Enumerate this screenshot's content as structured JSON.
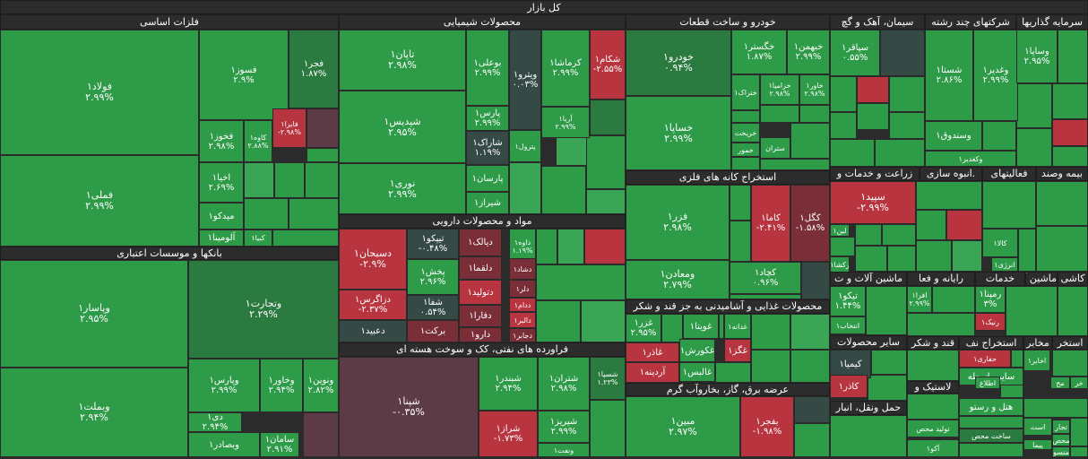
{
  "title": "کل بازار",
  "colors": {
    "green": "#2e9b48",
    "lgreen": "#3aa655",
    "dgreen": "#2b7a3f",
    "red": "#b8343f",
    "dred": "#7a2f38",
    "gray": "#354a45",
    "mauve": "#5d3b46"
  },
  "sectors": [
    {
      "label": "فلزات اساسی"
    },
    {
      "label": "محصولات شیمیایی"
    },
    {
      "label": "خودرو و ساخت قطعات"
    },
    {
      "label": "سیمان، آهک و گچ"
    },
    {
      "label": "شرکتهای چند رشته"
    },
    {
      "label": "سرمایه گذاریها"
    },
    {
      "label": "بانکها و موسسات اعتباری"
    },
    {
      "label": "مواد و محصولات دارویی"
    },
    {
      "label": "استخراج کانه های فلزی"
    },
    {
      "label": "زراعت و خدمات و"
    },
    {
      "label": ".انبوه سازی"
    },
    {
      "label": "فعالیتهای"
    },
    {
      "label": "بیمه وصند"
    },
    {
      "label": "فراورده های نفتی، کک و سوخت هسته ای"
    },
    {
      "label": "محصولات غذایی و آشامیدنی به جز قند و شکر"
    },
    {
      "label": "ماشین آلات و ت"
    },
    {
      "label": "رایانه و فعا"
    },
    {
      "label": "خدمات"
    },
    {
      "label": "ماشین آ"
    },
    {
      "label": "کاشی"
    },
    {
      "label": "عرضه برق، گاز، بخاروآب گرم"
    },
    {
      "label": "سایر محصولات"
    },
    {
      "label": "قند و شکر"
    },
    {
      "label": "استخراج نف"
    },
    {
      "label": "مخابر"
    },
    {
      "label": "استخر"
    },
    {
      "label": "حمل ونقل، انبار"
    },
    {
      "label": "لاستیک و"
    }
  ],
  "tiles": [
    {
      "name": "فولاد۱",
      "pct": "۲.۹۹%"
    },
    {
      "name": "فملی۱",
      "pct": "۲.۹۹%"
    },
    {
      "name": "فسوز۱",
      "pct": "۲.۹%"
    },
    {
      "name": "فجر۱",
      "pct": "۱.۸۷%"
    },
    {
      "name": "فخوز۱",
      "pct": "۲.۹۸%"
    },
    {
      "name": "کاوه۱",
      "pct": "۲.۸۸%"
    },
    {
      "name": "فایرا۱",
      "pct": "-۲.۹۸%"
    },
    {
      "name": "",
      "pct": ""
    },
    {
      "name": "اخیا۱",
      "pct": "۲.۶۹%"
    },
    {
      "name": "میدکو۱",
      "pct": ""
    },
    {
      "name": "آلومینا۱",
      "pct": ""
    },
    {
      "name": "کبیا۱",
      "pct": ""
    },
    {
      "name": "تاپان۱",
      "pct": "۲.۹۸%"
    },
    {
      "name": "شپدیس۱",
      "pct": "۲.۹۵%"
    },
    {
      "name": "نوری۱",
      "pct": "۲.۹۹%"
    },
    {
      "name": "بوعلی۱",
      "pct": "۲.۹۹%"
    },
    {
      "name": "ویترو۱",
      "pct": "۰.۰۳%"
    },
    {
      "name": "کرماشا۱",
      "pct": "۲.۹۹%"
    },
    {
      "name": "شکام۱",
      "pct": "-۲.۵۵%"
    },
    {
      "name": "پارس۱",
      "pct": "۲.۹۹%"
    },
    {
      "name": "آریا۱",
      "pct": "۲.۹۹%"
    },
    {
      "name": "شاراک۱",
      "pct": "۱.۱۹%"
    },
    {
      "name": "پترول۱",
      "pct": ""
    },
    {
      "name": "پارسان۱",
      "pct": ""
    },
    {
      "name": "شیراز۱",
      "pct": ""
    },
    {
      "name": "خودرو۱",
      "pct": "۰.۹۴%"
    },
    {
      "name": "خساپا۱",
      "pct": "۲.۹۹%"
    },
    {
      "name": "خگستر۱",
      "pct": "۱.۸۷%"
    },
    {
      "name": "خبهمن۱",
      "pct": "۲.۹۹%"
    },
    {
      "name": "خزامیا۱",
      "pct": "۲.۹۸%"
    },
    {
      "name": "خاور۱",
      "pct": "۲.۹۸%"
    },
    {
      "name": "ختراک۱",
      "pct": ""
    },
    {
      "name": "خریخت",
      "pct": ""
    },
    {
      "name": "خمور",
      "pct": ""
    },
    {
      "name": "ستران",
      "pct": ""
    },
    {
      "name": "سپاقر۱",
      "pct": "۰.۵۵%"
    },
    {
      "name": "شستا۱",
      "pct": "۲.۸۶%"
    },
    {
      "name": "وغدیر۱",
      "pct": "۲.۹۹%"
    },
    {
      "name": "وسندوق۱",
      "pct": ""
    },
    {
      "name": "وکغدیر۱",
      "pct": ""
    },
    {
      "name": "وساپا۱",
      "pct": "۲.۹۵%"
    },
    {
      "name": "وپاسار۱",
      "pct": "۲.۹۵%"
    },
    {
      "name": "وتجارت۱",
      "pct": "۲.۲۹%"
    },
    {
      "name": "وبملت۱",
      "pct": "۲.۹۴%"
    },
    {
      "name": "وپارس۱",
      "pct": "۲.۹۹%"
    },
    {
      "name": "وخاور۱",
      "pct": "۲.۹۴%"
    },
    {
      "name": "ونوین۱",
      "pct": "۲.۸۲%"
    },
    {
      "name": "دی۱",
      "pct": "۲.۹۴%"
    },
    {
      "name": "وبصادر۱",
      "pct": ""
    },
    {
      "name": "سامان۱",
      "pct": "۲.۹۱%"
    },
    {
      "name": "",
      "pct": ""
    },
    {
      "name": "دسبحان۱",
      "pct": "-۲.۹%"
    },
    {
      "name": "تیپکو۱",
      "pct": "-۰.۴۸%"
    },
    {
      "name": "دیالک۱",
      "pct": ""
    },
    {
      "name": "داوه۱",
      "pct": "۱.۱۹%"
    },
    {
      "name": "پخش۱",
      "pct": "۲.۹۶%"
    },
    {
      "name": "دلقما۱",
      "pct": ""
    },
    {
      "name": "دشاد۱",
      "pct": ""
    },
    {
      "name": "دلر۱",
      "pct": ""
    },
    {
      "name": "دزاگرس۱",
      "pct": "-۲.۳۷%"
    },
    {
      "name": "شفا۱",
      "pct": "۰.۵۴%"
    },
    {
      "name": "دتولید۱",
      "pct": ""
    },
    {
      "name": "ددام۱",
      "pct": ""
    },
    {
      "name": "دعبید۱",
      "pct": ""
    },
    {
      "name": "برکت۱",
      "pct": ""
    },
    {
      "name": "دفارا۱",
      "pct": ""
    },
    {
      "name": "دالبر۱",
      "pct": ""
    },
    {
      "name": "دارو۱",
      "pct": ""
    },
    {
      "name": "دجابر۱",
      "pct": ""
    },
    {
      "name": "فزر۱",
      "pct": "۲.۹۸%"
    },
    {
      "name": "کاما۱",
      "pct": "-۲.۴۱%"
    },
    {
      "name": "کگل۱",
      "pct": "-۱.۵۸%"
    },
    {
      "name": "ومعادن۱",
      "pct": "۲.۷۹%"
    },
    {
      "name": "کچاد۱",
      "pct": "۰.۹۶%"
    },
    {
      "name": "سپید۱",
      "pct": "-۲.۹۹%"
    },
    {
      "name": "لبن۱",
      "pct": ""
    },
    {
      "name": "زکشا۱",
      "pct": ""
    },
    {
      "name": "کالا۱",
      "pct": ""
    },
    {
      "name": "انرژی۱",
      "pct": ""
    },
    {
      "name": "شپنا۱",
      "pct": "-۰.۳۵%"
    },
    {
      "name": "شبندر۱",
      "pct": "۲.۹۴%"
    },
    {
      "name": "شتران۱",
      "pct": "۲.۹۸%"
    },
    {
      "name": "شسپا۱",
      "pct": "۱.۲۳%"
    },
    {
      "name": "شراز۱",
      "pct": "-۱.۷۳%"
    },
    {
      "name": "شیریز۱",
      "pct": "۲.۹۹%"
    },
    {
      "name": "ونفت۱",
      "pct": ""
    },
    {
      "name": "غزر۱",
      "pct": "۲.۹۵%"
    },
    {
      "name": "غویتا۱",
      "pct": ""
    },
    {
      "name": "غدانه۱",
      "pct": ""
    },
    {
      "name": "غاذر۱",
      "pct": ""
    },
    {
      "name": "غکورش۱",
      "pct": ""
    },
    {
      "name": "غگز۱",
      "pct": ""
    },
    {
      "name": "آردینه۱",
      "pct": ""
    },
    {
      "name": "غالبس۱",
      "pct": ""
    },
    {
      "name": "تیکو۱",
      "pct": "۱.۴۴%"
    },
    {
      "name": "انتخاب۱",
      "pct": ""
    },
    {
      "name": "افرا۱",
      "pct": "۲.۹۹%"
    },
    {
      "name": "رمپنا۱",
      "pct": "۳%"
    },
    {
      "name": "رنیک۱",
      "pct": ""
    },
    {
      "name": "مبین۱",
      "pct": "۲.۹۷%"
    },
    {
      "name": "بفجر۱",
      "pct": "-۱.۹۸%"
    },
    {
      "name": "کیمیا۱",
      "pct": ""
    },
    {
      "name": "کاذر۱",
      "pct": ""
    },
    {
      "name": "حفاری۱",
      "pct": ""
    },
    {
      "name": "اخابر۱",
      "pct": ""
    },
    {
      "name": "سایر واسطه",
      "pct": ""
    },
    {
      "name": "اطلاع",
      "pct": ""
    },
    {
      "name": "مح",
      "pct": ""
    },
    {
      "name": "خر",
      "pct": ""
    },
    {
      "name": "هتل و رستو",
      "pct": ""
    },
    {
      "name": "تجار",
      "pct": ""
    },
    {
      "name": "است",
      "pct": ""
    },
    {
      "name": "ساخت محص",
      "pct": ""
    },
    {
      "name": "محص",
      "pct": ""
    },
    {
      "name": "پیما",
      "pct": ""
    },
    {
      "name": "منسو",
      "pct": ""
    },
    {
      "name": "تولید محص",
      "pct": ""
    },
    {
      "name": "آکو۱",
      "pct": ""
    }
  ]
}
